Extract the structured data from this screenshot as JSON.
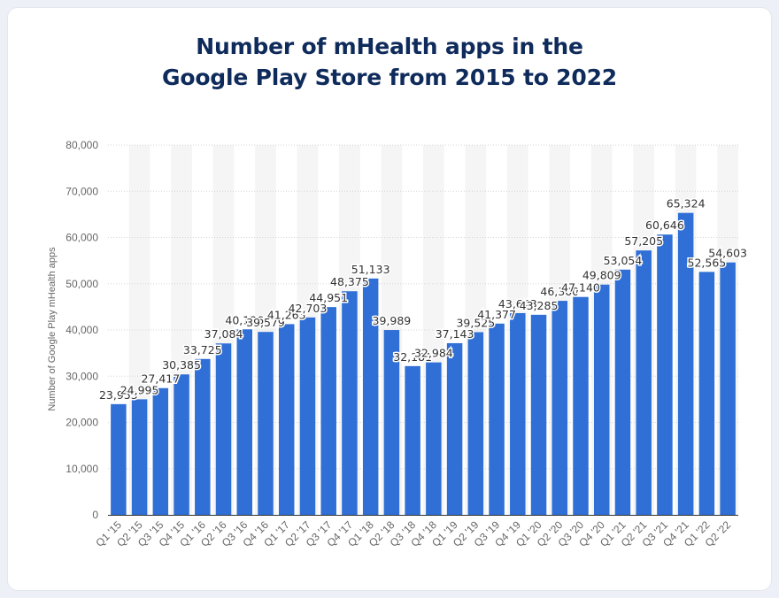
{
  "page": {
    "background": "#eef0f7",
    "card_background": "#ffffff",
    "title_line1": "Number of mHealth apps in the",
    "title_line2": "Google Play Store from 2015 to 2022",
    "title_color": "#0f2b5b"
  },
  "chart_data": {
    "type": "bar",
    "title": "Number of mHealth apps in the Google Play Store from 2015 to 2022",
    "xlabel": "",
    "ylabel": "Number of Google Play mHealth apps",
    "ylim": [
      0,
      80000
    ],
    "yticks": [
      0,
      10000,
      20000,
      30000,
      40000,
      50000,
      60000,
      70000,
      80000
    ],
    "ytick_labels": [
      "0",
      "10,000",
      "20,000",
      "30,000",
      "40,000",
      "50,000",
      "60,000",
      "70,000",
      "80,000"
    ],
    "grid": true,
    "bar_color": "#2f6fd6",
    "categories": [
      "Q1 '15",
      "Q2 '15",
      "Q3 '15",
      "Q4 '15",
      "Q1 '16",
      "Q2 '16",
      "Q3 '16",
      "Q4 '16",
      "Q1 '17",
      "Q2 '17",
      "Q3 '17",
      "Q4 '17",
      "Q1 '18",
      "Q2 '18",
      "Q3 '18",
      "Q4 '18",
      "Q1 '19",
      "Q2 '19",
      "Q3 '19",
      "Q4 '19",
      "Q1 '20",
      "Q2 '20",
      "Q3 '20",
      "Q4 '20",
      "Q1 '21",
      "Q2 '21",
      "Q3 '21",
      "Q4 '21",
      "Q1 '22",
      "Q2 '22"
    ],
    "values": [
      23953,
      24995,
      27417,
      30385,
      33725,
      37084,
      40136,
      39579,
      41263,
      42703,
      44951,
      48375,
      51133,
      39989,
      32181,
      32984,
      37143,
      39525,
      41377,
      43643,
      43285,
      46300,
      47140,
      49809,
      53054,
      57205,
      60646,
      65324,
      52565,
      54603
    ],
    "value_labels": [
      "23,953",
      "24,995",
      "27,417",
      "30,385",
      "33,725",
      "37,084",
      "40,136",
      "39,579",
      "41,263",
      "42,703",
      "44,951",
      "48,375",
      "51,133",
      "39,989",
      "32,181",
      "32,984",
      "37,143",
      "39,525",
      "41,377",
      "43,643",
      "43,285",
      "46,300",
      "47,140",
      "49,809",
      "53,054",
      "57,205",
      "60,646",
      "65,324",
      "52,565",
      "54,603"
    ]
  }
}
